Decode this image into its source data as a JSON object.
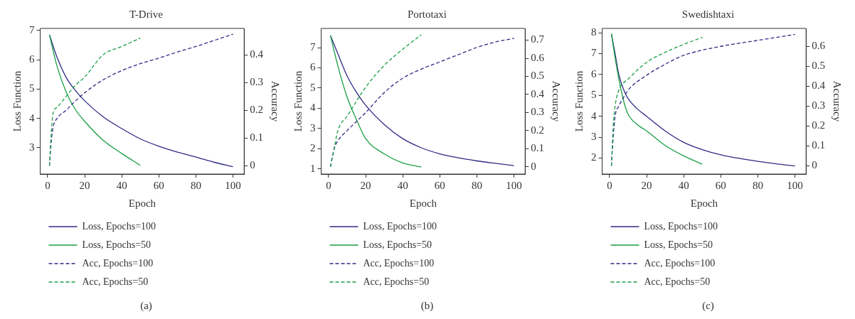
{
  "chart_data": [
    {
      "type": "line",
      "title": "T-Drive",
      "xlabel": "Epoch",
      "ylabel": "Loss Function",
      "y2label": "Accuracy",
      "xlim": [
        -4,
        106
      ],
      "xticks": [
        0,
        20,
        40,
        60,
        80,
        100
      ],
      "ylim": [
        2.1,
        7.07
      ],
      "yticks": [
        3,
        4,
        5,
        6,
        7
      ],
      "y2lim": [
        -0.03,
        0.495
      ],
      "y2ticks": [
        0,
        0.1,
        0.2,
        0.3,
        0.4
      ],
      "grid": false,
      "legend": "bottom",
      "annotations": [
        "(a)"
      ],
      "series": [
        {
          "name": "Loss, Epochs=100",
          "color": "#2e2a85",
          "line_style": "solid",
          "x": [
            1,
            5,
            10,
            15,
            20,
            30,
            40,
            50,
            60,
            70,
            80,
            90,
            100
          ],
          "values": [
            6.85,
            6.1,
            5.4,
            4.95,
            4.6,
            4.05,
            3.65,
            3.3,
            3.05,
            2.85,
            2.68,
            2.5,
            2.35
          ]
        },
        {
          "name": "Loss, Epochs=50",
          "color": "#1a9e45",
          "line_style": "solid",
          "x": [
            1,
            5,
            10,
            15,
            20,
            30,
            40,
            50
          ],
          "values": [
            6.85,
            5.8,
            4.9,
            4.3,
            3.9,
            3.25,
            2.8,
            2.4
          ]
        },
        {
          "name": "Acc, Epochs=100",
          "color": "#2e2a85",
          "line_style": "dashed",
          "axis": "y2",
          "x": [
            1,
            2,
            3,
            5,
            10,
            14,
            20,
            30,
            40,
            50,
            60,
            70,
            80,
            90,
            100
          ],
          "values": [
            0,
            0.09,
            0.14,
            0.17,
            0.2,
            0.227,
            0.263,
            0.31,
            0.343,
            0.368,
            0.388,
            0.41,
            0.43,
            0.452,
            0.474
          ]
        },
        {
          "name": "Acc, Epochs=50",
          "color": "#1a9e45",
          "line_style": "dashed",
          "axis": "y2",
          "x": [
            1,
            2,
            3,
            5,
            10,
            15,
            20,
            30,
            40,
            50
          ],
          "values": [
            0,
            0.12,
            0.19,
            0.21,
            0.25,
            0.29,
            0.32,
            0.4,
            0.43,
            0.46
          ]
        }
      ]
    },
    {
      "type": "line",
      "title": "Portotaxi",
      "xlabel": "Epoch",
      "ylabel": "Loss Function",
      "y2label": "Accuracy",
      "xlim": [
        -4,
        106
      ],
      "xticks": [
        0,
        20,
        40,
        60,
        80,
        100
      ],
      "ylim": [
        0.75,
        7.95
      ],
      "yticks": [
        1,
        2,
        3,
        4,
        5,
        6,
        7
      ],
      "y2lim": [
        -0.04,
        0.765
      ],
      "y2ticks": [
        0,
        0.1,
        0.2,
        0.3,
        0.4,
        0.5,
        0.6,
        0.7
      ],
      "grid": false,
      "legend": "bottom",
      "annotations": [
        "(b)"
      ],
      "series": [
        {
          "name": "Loss, Epochs=100",
          "color": "#2e2a85",
          "line_style": "solid",
          "x": [
            1,
            5,
            10,
            15,
            20,
            30,
            40,
            50,
            60,
            70,
            80,
            90,
            100
          ],
          "values": [
            7.6,
            6.7,
            5.6,
            4.8,
            4.15,
            3.2,
            2.5,
            2.05,
            1.75,
            1.55,
            1.4,
            1.28,
            1.17
          ]
        },
        {
          "name": "Loss, Epochs=50",
          "color": "#1a9e45",
          "line_style": "solid",
          "x": [
            1,
            5,
            10,
            15,
            20,
            30,
            40,
            50
          ],
          "values": [
            7.6,
            6.1,
            4.55,
            3.45,
            2.5,
            1.75,
            1.3,
            1.1
          ]
        },
        {
          "name": "Acc, Epochs=100",
          "color": "#2e2a85",
          "line_style": "dashed",
          "axis": "y2",
          "x": [
            1,
            3,
            5,
            10,
            20,
            30,
            40,
            50,
            60,
            70,
            80,
            90,
            100
          ],
          "values": [
            0,
            0.1,
            0.144,
            0.2,
            0.3,
            0.41,
            0.49,
            0.54,
            0.58,
            0.62,
            0.66,
            0.69,
            0.71
          ]
        },
        {
          "name": "Acc, Epochs=50",
          "color": "#1a9e45",
          "line_style": "dashed",
          "axis": "y2",
          "x": [
            1,
            3,
            5,
            10,
            20,
            30,
            40,
            50
          ],
          "values": [
            0,
            0.1,
            0.2,
            0.28,
            0.44,
            0.56,
            0.65,
            0.73
          ]
        }
      ]
    },
    {
      "type": "line",
      "title": "Swedishtaxi",
      "xlabel": "Epoch",
      "ylabel": "Loss Function",
      "y2label": "Accuracy",
      "xlim": [
        -4,
        106
      ],
      "xticks": [
        0,
        20,
        40,
        60,
        80,
        100
      ],
      "ylim": [
        1.23,
        8.21
      ],
      "yticks": [
        2,
        3,
        4,
        5,
        6,
        7,
        8
      ],
      "y2lim": [
        -0.041,
        0.69
      ],
      "y2ticks": [
        0,
        0.1,
        0.2,
        0.3,
        0.4,
        0.5,
        0.6
      ],
      "grid": false,
      "legend": "bottom",
      "annotations": [
        "(c)"
      ],
      "series": [
        {
          "name": "Loss, Epochs=100",
          "color": "#2e2a85",
          "line_style": "solid",
          "x": [
            1,
            3,
            5,
            8,
            10,
            15,
            20,
            30,
            40,
            50,
            60,
            70,
            80,
            90,
            100
          ],
          "values": [
            7.95,
            7.0,
            6.0,
            5.2,
            4.85,
            4.35,
            4.0,
            3.3,
            2.75,
            2.4,
            2.15,
            1.98,
            1.84,
            1.72,
            1.62
          ]
        },
        {
          "name": "Loss, Epochs=50",
          "color": "#1a9e45",
          "line_style": "solid",
          "x": [
            1,
            3,
            5,
            8,
            10,
            15,
            20,
            30,
            40,
            50
          ],
          "values": [
            7.95,
            6.8,
            5.8,
            4.6,
            4.1,
            3.6,
            3.3,
            2.6,
            2.1,
            1.7
          ]
        },
        {
          "name": "Acc, Epochs=100",
          "color": "#2e2a85",
          "line_style": "dashed",
          "axis": "y2",
          "x": [
            1,
            2,
            3,
            5,
            8,
            10,
            20,
            30,
            40,
            60,
            80,
            100
          ],
          "values": [
            0,
            0.15,
            0.25,
            0.3,
            0.35,
            0.38,
            0.455,
            0.51,
            0.555,
            0.6,
            0.63,
            0.66
          ]
        },
        {
          "name": "Acc, Epochs=50",
          "color": "#1a9e45",
          "line_style": "dashed",
          "axis": "y2",
          "x": [
            1,
            2,
            3,
            5,
            10,
            20,
            30,
            40,
            50
          ],
          "values": [
            0,
            0.2,
            0.3,
            0.38,
            0.435,
            0.52,
            0.57,
            0.61,
            0.645
          ]
        }
      ]
    }
  ]
}
